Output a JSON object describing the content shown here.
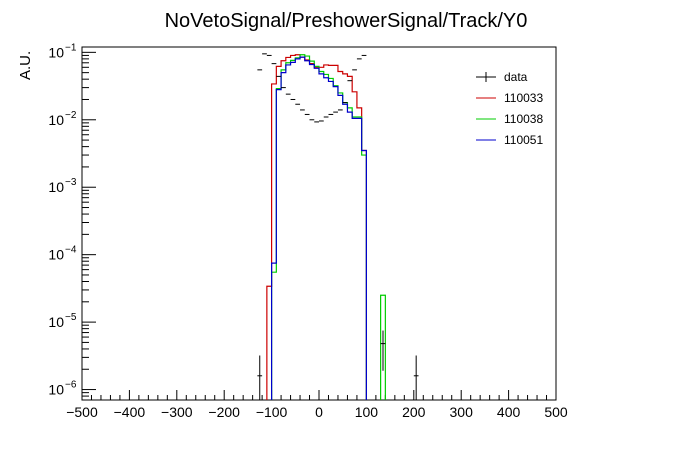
{
  "chart_data": {
    "type": "histogram",
    "title": "NoVetoSignal/PreshowerSignal/Track/Y0",
    "xlabel": "",
    "ylabel": "A.U.",
    "xlim": [
      -500,
      500
    ],
    "ylim": [
      7e-07,
      0.12
    ],
    "yscale": "log",
    "grid": false,
    "legend_position": "top-right",
    "x_ticks": [
      -500,
      -400,
      -300,
      -200,
      -100,
      0,
      100,
      200,
      300,
      400,
      500
    ],
    "x_tick_labels": [
      "−500",
      "−400",
      "−300",
      "−200",
      "−100",
      "0",
      "100",
      "200",
      "300",
      "400",
      "500"
    ],
    "y_ticks": [
      1e-06,
      1e-05,
      0.0001,
      0.001,
      0.01,
      0.1
    ],
    "y_tick_labels": [
      {
        "base": "10",
        "exp": "−6"
      },
      {
        "base": "10",
        "exp": "−5"
      },
      {
        "base": "10",
        "exp": "−4"
      },
      {
        "base": "10",
        "exp": "−3"
      },
      {
        "base": "10",
        "exp": "−2"
      },
      {
        "base": "10",
        "exp": "−1"
      }
    ],
    "bin_width": 10,
    "legend": [
      {
        "name": "data",
        "color": "#000000",
        "style": "error-bar"
      },
      {
        "name": "110033",
        "color": "#cc0000",
        "style": "line"
      },
      {
        "name": "110038",
        "color": "#00cc00",
        "style": "line"
      },
      {
        "name": "110051",
        "color": "#0000cc",
        "style": "line"
      }
    ],
    "series": [
      {
        "name": "110033",
        "color": "#cc0000",
        "bins": [
          {
            "x": -110,
            "y": 3.4e-05
          },
          {
            "x": -100,
            "y": 0.034
          },
          {
            "x": -90,
            "y": 0.062
          },
          {
            "x": -80,
            "y": 0.075
          },
          {
            "x": -70,
            "y": 0.084
          },
          {
            "x": -60,
            "y": 0.09
          },
          {
            "x": -50,
            "y": 0.092
          },
          {
            "x": -40,
            "y": 0.085
          },
          {
            "x": -30,
            "y": 0.077
          },
          {
            "x": -20,
            "y": 0.068
          },
          {
            "x": -10,
            "y": 0.06
          },
          {
            "x": 0,
            "y": 0.06
          },
          {
            "x": 10,
            "y": 0.065
          },
          {
            "x": 20,
            "y": 0.064
          },
          {
            "x": 30,
            "y": 0.064
          },
          {
            "x": 40,
            "y": 0.052
          },
          {
            "x": 50,
            "y": 0.048
          },
          {
            "x": 60,
            "y": 0.044
          },
          {
            "x": 70,
            "y": 0.026
          },
          {
            "x": 80,
            "y": 0.015
          },
          {
            "x": 90,
            "y": 0.0035
          }
        ]
      },
      {
        "name": "110038",
        "color": "#00cc00",
        "bins": [
          {
            "x": -100,
            "y": 5.5e-05
          },
          {
            "x": -90,
            "y": 0.029
          },
          {
            "x": -80,
            "y": 0.055
          },
          {
            "x": -70,
            "y": 0.07
          },
          {
            "x": -60,
            "y": 0.076
          },
          {
            "x": -50,
            "y": 0.083
          },
          {
            "x": -40,
            "y": 0.092
          },
          {
            "x": -30,
            "y": 0.088
          },
          {
            "x": -20,
            "y": 0.074
          },
          {
            "x": -10,
            "y": 0.062
          },
          {
            "x": 0,
            "y": 0.052
          },
          {
            "x": 10,
            "y": 0.047
          },
          {
            "x": 20,
            "y": 0.041
          },
          {
            "x": 30,
            "y": 0.032
          },
          {
            "x": 40,
            "y": 0.025
          },
          {
            "x": 50,
            "y": 0.018
          },
          {
            "x": 60,
            "y": 0.015
          },
          {
            "x": 70,
            "y": 0.011
          },
          {
            "x": 80,
            "y": 0.011
          },
          {
            "x": 90,
            "y": 0.003
          },
          {
            "x": 130,
            "y": 2.5e-05
          }
        ]
      },
      {
        "name": "110051",
        "color": "#0000cc",
        "bins": [
          {
            "x": -100,
            "y": 7.5e-05
          },
          {
            "x": -90,
            "y": 0.028
          },
          {
            "x": -80,
            "y": 0.05
          },
          {
            "x": -70,
            "y": 0.065
          },
          {
            "x": -60,
            "y": 0.071
          },
          {
            "x": -50,
            "y": 0.08
          },
          {
            "x": -40,
            "y": 0.085
          },
          {
            "x": -30,
            "y": 0.075
          },
          {
            "x": -20,
            "y": 0.066
          },
          {
            "x": -10,
            "y": 0.058
          },
          {
            "x": 0,
            "y": 0.048
          },
          {
            "x": 10,
            "y": 0.042
          },
          {
            "x": 20,
            "y": 0.037
          },
          {
            "x": 30,
            "y": 0.031
          },
          {
            "x": 40,
            "y": 0.023
          },
          {
            "x": 50,
            "y": 0.017
          },
          {
            "x": 60,
            "y": 0.013
          },
          {
            "x": 70,
            "y": 0.0105
          },
          {
            "x": 80,
            "y": 0.0105
          },
          {
            "x": 90,
            "y": 0.0035
          }
        ]
      },
      {
        "name": "data",
        "color": "#000000",
        "points": [
          {
            "x": -125,
            "y": 1.6e-06,
            "ylo": 7e-07,
            "yhi": 3.2e-06
          },
          {
            "x": -125,
            "y": 0.055
          },
          {
            "x": -115,
            "y": 0.095
          },
          {
            "x": -105,
            "y": 0.09
          },
          {
            "x": -95,
            "y": 0.068
          },
          {
            "x": -85,
            "y": 0.044
          },
          {
            "x": -75,
            "y": 0.03
          },
          {
            "x": -65,
            "y": 0.024
          },
          {
            "x": -55,
            "y": 0.02
          },
          {
            "x": -45,
            "y": 0.017
          },
          {
            "x": -35,
            "y": 0.014
          },
          {
            "x": -25,
            "y": 0.012
          },
          {
            "x": -15,
            "y": 0.01
          },
          {
            "x": -5,
            "y": 0.0093
          },
          {
            "x": 5,
            "y": 0.0096
          },
          {
            "x": 15,
            "y": 0.011
          },
          {
            "x": 25,
            "y": 0.012
          },
          {
            "x": 35,
            "y": 0.013
          },
          {
            "x": 45,
            "y": 0.014
          },
          {
            "x": 55,
            "y": 0.018
          },
          {
            "x": 65,
            "y": 0.038
          },
          {
            "x": 75,
            "y": 0.055
          },
          {
            "x": 85,
            "y": 0.08
          },
          {
            "x": 95,
            "y": 0.09
          },
          {
            "x": 135,
            "y": 4.8e-06,
            "ylo": 1.9e-06,
            "yhi": 7.5e-06
          },
          {
            "x": 205,
            "y": 1.6e-06,
            "ylo": 7e-07,
            "yhi": 3.2e-06
          }
        ]
      }
    ]
  }
}
